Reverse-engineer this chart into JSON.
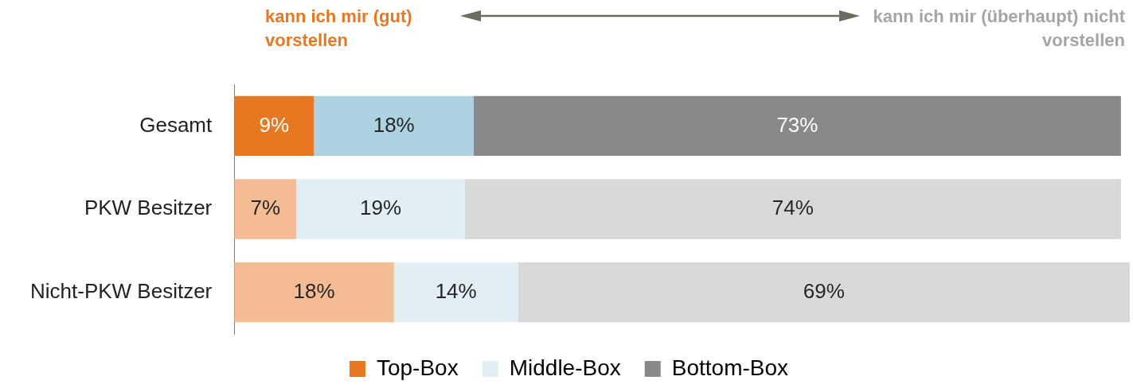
{
  "chart_data": {
    "type": "bar",
    "orientation": "horizontal",
    "stacked": true,
    "legend": "bottom",
    "categories": [
      "Gesamt",
      "PKW Besitzer",
      "Nicht-PKW Besitzer"
    ],
    "annotations": [
      "kann ich mir (gut) vorstellen",
      "kann ich mir (überhaupt) nicht vorstellen"
    ],
    "series": [
      {
        "name": "Top-Box",
        "color": "#e87722",
        "colors": [
          "#e87722",
          "#f4bc92",
          "#f4bc92"
        ],
        "values": [
          9,
          7,
          18
        ],
        "value_labels": [
          "9%",
          "7%",
          "18%"
        ]
      },
      {
        "name": "Middle-Box",
        "color": "#e1eff4",
        "colors": [
          "#aed3e0",
          "#e1eff4",
          "#e1eff4"
        ],
        "values": [
          18,
          19,
          14
        ],
        "value_labels": [
          "18%",
          "19%",
          "14%"
        ]
      },
      {
        "name": "Bottom-Box",
        "color": "#87898b",
        "colors": [
          "#87898b",
          "#d9d9d9",
          "#d9d9d9"
        ],
        "values": [
          73,
          74,
          69
        ],
        "value_labels": [
          "73%",
          "74%",
          "69%"
        ]
      }
    ]
  }
}
